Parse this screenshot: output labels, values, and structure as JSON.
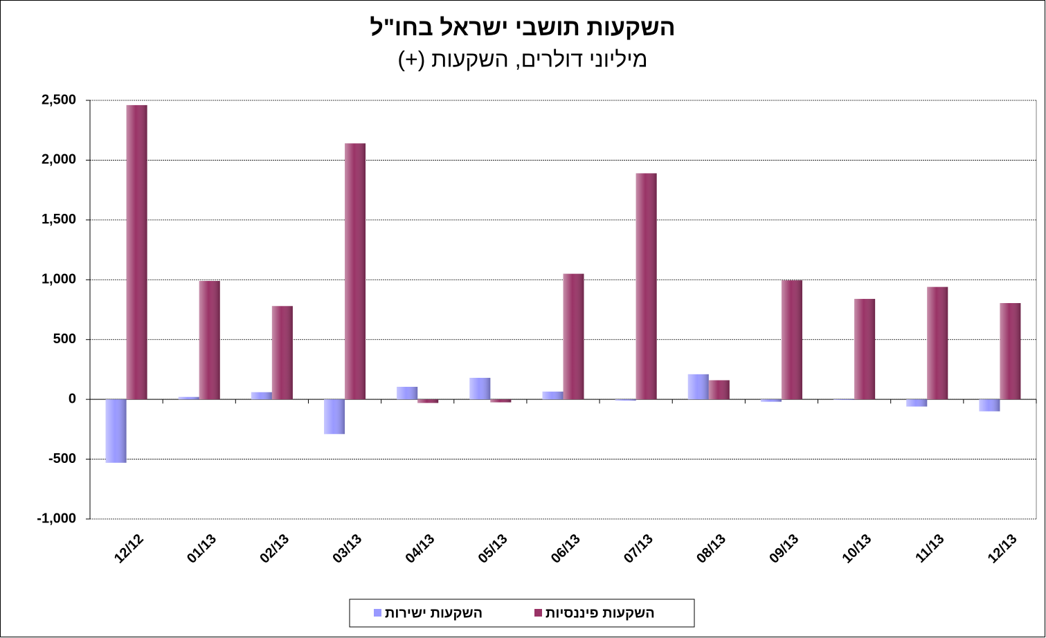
{
  "chart_data": {
    "type": "bar",
    "title": "השקעות תושבי ישראל בחו\"ל",
    "subtitle": "מיליוני דולרים, השקעות (+)",
    "categories": [
      "12/12",
      "01/13",
      "02/13",
      "03/13",
      "04/13",
      "05/13",
      "06/13",
      "07/13",
      "08/13",
      "09/13",
      "10/13",
      "11/13",
      "12/13"
    ],
    "series": [
      {
        "name": "השקעות ישירות",
        "color": "#9999ff",
        "values": [
          -530,
          20,
          60,
          -290,
          105,
          180,
          65,
          -10,
          210,
          -20,
          -5,
          -60,
          -100
        ]
      },
      {
        "name": "השקעות פיננסיות",
        "color": "#993366",
        "values": [
          2460,
          990,
          780,
          2140,
          -30,
          -25,
          1050,
          1890,
          160,
          995,
          840,
          940,
          805
        ]
      }
    ],
    "ylim": [
      -1000,
      2500
    ],
    "yticks": [
      {
        "value": -1000,
        "label": "-1,000"
      },
      -500,
      0,
      500,
      {
        "value": 1000,
        "label": "1,000"
      },
      {
        "value": 1500,
        "label": "1,500"
      },
      {
        "value": 2000,
        "label": "2,000"
      },
      {
        "value": 2500,
        "label": "2,500"
      }
    ],
    "grid": true
  }
}
